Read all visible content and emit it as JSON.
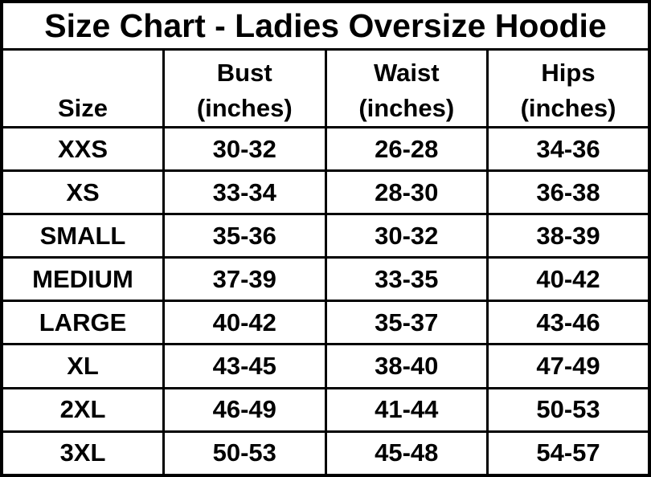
{
  "title": "Size Chart - Ladies Oversize Hoodie",
  "headers": [
    {
      "lines": [
        "Size"
      ]
    },
    {
      "lines": [
        "Bust",
        "(inches)"
      ]
    },
    {
      "lines": [
        "Waist",
        "(inches)"
      ]
    },
    {
      "lines": [
        "Hips",
        "(inches)"
      ]
    }
  ],
  "rows": [
    [
      "XXS",
      "30-32",
      "26-28",
      "34-36"
    ],
    [
      "XS",
      "33-34",
      "28-30",
      "36-38"
    ],
    [
      "SMALL",
      "35-36",
      "30-32",
      "38-39"
    ],
    [
      "MEDIUM",
      "37-39",
      "33-35",
      "40-42"
    ],
    [
      "LARGE",
      "40-42",
      "35-37",
      "43-46"
    ],
    [
      "XL",
      "43-45",
      "38-40",
      "47-49"
    ],
    [
      "2XL",
      "46-49",
      "41-44",
      "50-53"
    ],
    [
      "3XL",
      "50-53",
      "45-48",
      "54-57"
    ]
  ],
  "colors": {
    "border": "#000000",
    "text": "#000000",
    "background": "#ffffff"
  }
}
